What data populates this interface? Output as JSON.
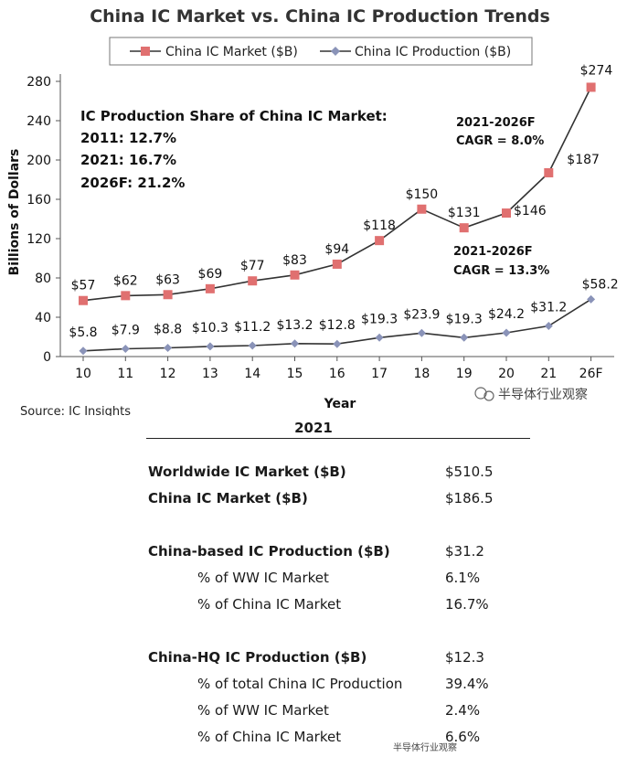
{
  "chart_data": {
    "type": "line",
    "title": "China IC Market vs. China IC Production Trends",
    "xlabel": "Year",
    "ylabel": "Billions of Dollars",
    "ylim": [
      0,
      280
    ],
    "yticks": [
      0,
      40,
      80,
      120,
      160,
      200,
      240,
      280
    ],
    "categories": [
      "10",
      "11",
      "12",
      "13",
      "14",
      "15",
      "16",
      "17",
      "18",
      "19",
      "20",
      "21",
      "26F"
    ],
    "legend_position": "top",
    "grid": false,
    "series": [
      {
        "name": "China IC Market ($B)",
        "color": "#e07070",
        "line_color": "#333333",
        "marker": "square",
        "values": [
          57,
          62,
          63,
          69,
          77,
          83,
          94,
          118,
          150,
          131,
          146,
          187,
          274
        ],
        "labels": [
          "$57",
          "$62",
          "$63",
          "$69",
          "$77",
          "$83",
          "$94",
          "$118",
          "$150",
          "$131",
          "$146",
          "$187",
          "$274"
        ]
      },
      {
        "name": "China IC Production ($B)",
        "color": "#8a93b8",
        "line_color": "#333333",
        "marker": "diamond",
        "values": [
          5.8,
          7.9,
          8.8,
          10.3,
          11.2,
          13.2,
          12.8,
          19.3,
          23.9,
          19.3,
          24.2,
          31.2,
          58.2
        ],
        "labels": [
          "$5.8",
          "$7.9",
          "$8.8",
          "$10.3",
          "$11.2",
          "$13.2",
          "$12.8",
          "$19.3",
          "$23.9",
          "$19.3",
          "$24.2",
          "$31.2",
          "$58.2"
        ]
      }
    ],
    "annotations": {
      "share_title": "IC Production Share of China IC Market:",
      "share_lines": [
        "2011: 12.7%",
        "2021: 16.7%",
        "2026F: 21.2%"
      ],
      "market_cagr_line1": "2021-2026F",
      "market_cagr_line2": "CAGR = 8.0%",
      "production_cagr_line1": "2021-2026F",
      "production_cagr_line2": "CAGR = 13.3%"
    },
    "source": "Source: IC Insights"
  },
  "watermark": "半导体行业观察",
  "table": {
    "header": "2021",
    "rows": [
      {
        "label": "Worldwide IC Market ($B)",
        "value": "$510.5",
        "style": "bold"
      },
      {
        "label": "China IC Market ($B)",
        "value": "$186.5",
        "style": "bold"
      },
      {
        "label": "China-based IC Production ($B)",
        "value": "$31.2",
        "style": "bold"
      },
      {
        "label": "% of WW IC Market",
        "value": "6.1%",
        "style": "sub"
      },
      {
        "label": "% of China IC Market",
        "value": "16.7%",
        "style": "sub"
      },
      {
        "label": "China-HQ IC Production ($B)",
        "value": "$12.3",
        "style": "bold"
      },
      {
        "label": "% of total China IC Production",
        "value": "39.4%",
        "style": "sub"
      },
      {
        "label": "% of WW IC Market",
        "value": "2.4%",
        "style": "sub"
      },
      {
        "label": "% of China IC Market",
        "value": "6.6%",
        "style": "sub"
      }
    ]
  }
}
